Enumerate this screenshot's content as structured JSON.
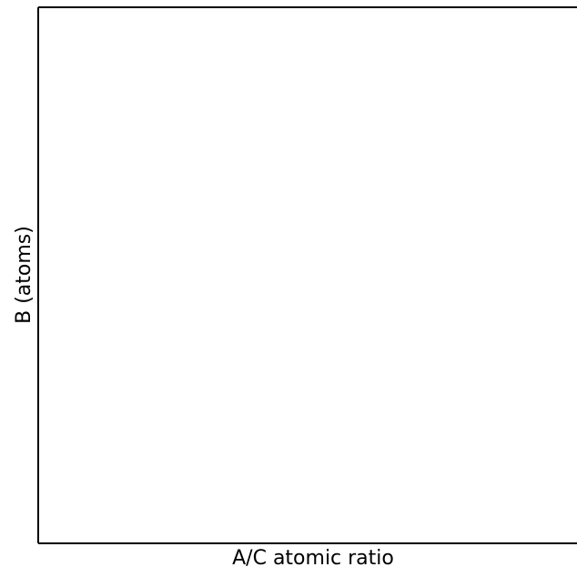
{
  "chart_data": {
    "type": "scatter",
    "xlabel": "A/C atomic ratio",
    "ylabel": "B (atoms)",
    "series": [],
    "grid": false,
    "legend": "none",
    "xticks": [],
    "yticks": []
  },
  "colors": {
    "axis": "#000000",
    "background": "#ffffff"
  }
}
